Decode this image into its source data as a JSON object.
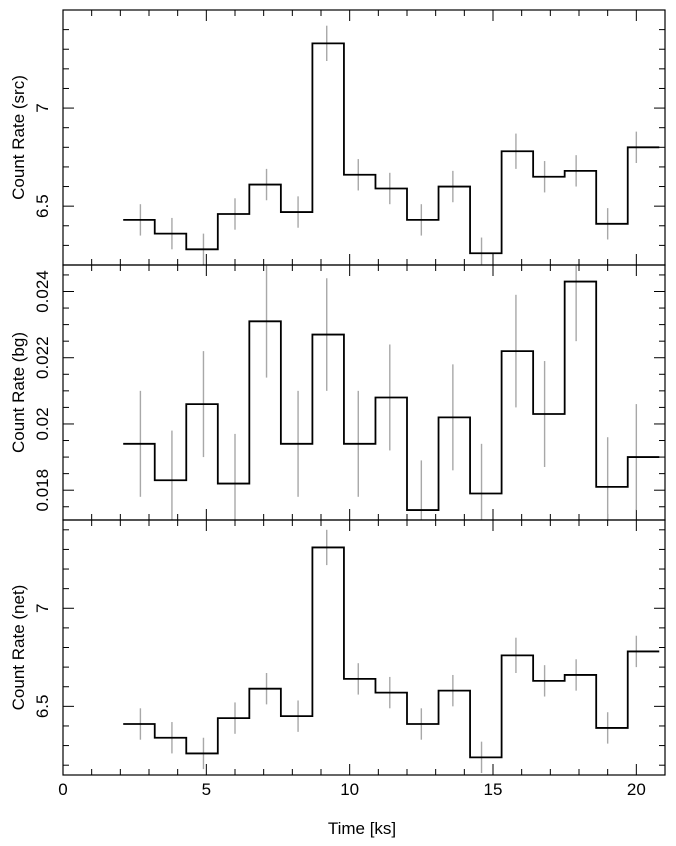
{
  "chart_data": [
    {
      "type": "line",
      "step": true,
      "ylabel": "Count Rate (src)",
      "ylim": [
        6.2,
        7.5
      ],
      "yticks": [
        6.5,
        7
      ],
      "ytick_labels": [
        "6.5",
        "7"
      ],
      "yminor_step": 0.1,
      "xlim": [
        0,
        21
      ],
      "bin_edges": [
        2.1,
        3.2,
        4.3,
        5.4,
        6.5,
        7.6,
        8.7,
        9.8,
        10.9,
        12.0,
        13.1,
        14.2,
        15.3,
        16.4,
        17.5,
        18.6,
        19.7,
        20.8
      ],
      "x": [
        2.7,
        3.8,
        4.9,
        6.0,
        7.1,
        8.2,
        9.2,
        10.3,
        11.4,
        12.5,
        13.6,
        14.6,
        15.8,
        16.8,
        17.9,
        19.0,
        20.0
      ],
      "values": [
        6.43,
        6.36,
        6.28,
        6.46,
        6.61,
        6.47,
        7.33,
        6.66,
        6.59,
        6.43,
        6.6,
        6.26,
        6.78,
        6.65,
        6.68,
        6.41,
        6.8
      ],
      "errors": [
        0.08,
        0.08,
        0.08,
        0.08,
        0.08,
        0.08,
        0.09,
        0.08,
        0.08,
        0.08,
        0.08,
        0.08,
        0.09,
        0.08,
        0.08,
        0.08,
        0.08
      ]
    },
    {
      "type": "line",
      "step": true,
      "ylabel": "Count Rate (bg)",
      "ylim": [
        0.0171,
        0.0248
      ],
      "yticks": [
        0.018,
        0.02,
        0.022,
        0.024
      ],
      "ytick_labels": [
        "0.018",
        "0.02",
        "0.022",
        "0.024"
      ],
      "yminor_step": 0.0005,
      "xlim": [
        0,
        21
      ],
      "bin_edges": [
        2.1,
        3.2,
        4.3,
        5.4,
        6.5,
        7.6,
        8.7,
        9.8,
        10.9,
        12.0,
        13.1,
        14.2,
        15.3,
        16.4,
        17.5,
        18.6,
        19.7,
        20.8
      ],
      "x": [
        2.7,
        3.8,
        4.9,
        6.0,
        7.1,
        8.2,
        9.2,
        10.3,
        11.4,
        12.5,
        13.6,
        14.6,
        15.8,
        16.8,
        17.9,
        19.0,
        20.0
      ],
      "values": [
        0.0194,
        0.0183,
        0.0206,
        0.0182,
        0.0231,
        0.0194,
        0.0227,
        0.0194,
        0.0208,
        0.0174,
        0.0202,
        0.0179,
        0.0222,
        0.0203,
        0.0243,
        0.0181,
        0.019
      ],
      "errors": [
        0.0016,
        0.0015,
        0.0016,
        0.0015,
        0.0017,
        0.0016,
        0.0017,
        0.0016,
        0.0016,
        0.0015,
        0.0016,
        0.0015,
        0.0017,
        0.0016,
        0.0018,
        0.0015,
        0.0016
      ]
    },
    {
      "type": "line",
      "step": true,
      "ylabel": "Count Rate (net)",
      "xlabel": "Time [ks]",
      "ylim": [
        6.15,
        7.45
      ],
      "yticks": [
        6.5,
        7
      ],
      "ytick_labels": [
        "6.5",
        "7"
      ],
      "yminor_step": 0.1,
      "xlim": [
        0,
        21
      ],
      "xticks": [
        0,
        5,
        10,
        15,
        20
      ],
      "xtick_labels": [
        "0",
        "5",
        "10",
        "15",
        "20"
      ],
      "xminor_step": 1,
      "bin_edges": [
        2.1,
        3.2,
        4.3,
        5.4,
        6.5,
        7.6,
        8.7,
        9.8,
        10.9,
        12.0,
        13.1,
        14.2,
        15.3,
        16.4,
        17.5,
        18.6,
        19.7,
        20.8
      ],
      "x": [
        2.7,
        3.8,
        4.9,
        6.0,
        7.1,
        8.2,
        9.2,
        10.3,
        11.4,
        12.5,
        13.6,
        14.6,
        15.8,
        16.8,
        17.9,
        19.0,
        20.0
      ],
      "values": [
        6.41,
        6.34,
        6.26,
        6.44,
        6.59,
        6.45,
        7.31,
        6.64,
        6.57,
        6.41,
        6.58,
        6.24,
        6.76,
        6.63,
        6.66,
        6.39,
        6.78
      ],
      "errors": [
        0.08,
        0.08,
        0.08,
        0.08,
        0.08,
        0.08,
        0.09,
        0.08,
        0.08,
        0.08,
        0.08,
        0.08,
        0.09,
        0.08,
        0.08,
        0.08,
        0.08
      ]
    }
  ],
  "colors": {
    "step_line": "#000000",
    "error_bar": "#a8a8a8",
    "frame": "#000000"
  }
}
